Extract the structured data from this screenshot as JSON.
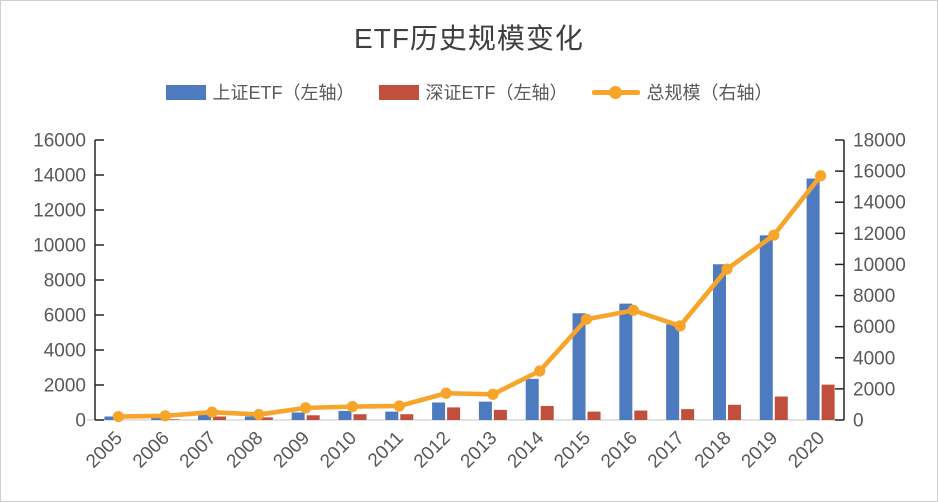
{
  "title": "ETF历史规模变化",
  "legend": [
    {
      "label": "上证ETF（左轴）",
      "type": "bar",
      "color": "#4E7BBF"
    },
    {
      "label": "深证ETF（左轴）",
      "type": "bar",
      "color": "#C04F3E"
    },
    {
      "label": "总规模（右轴）",
      "type": "line",
      "color": "#F7A42B"
    }
  ],
  "colors": {
    "shanghai_bar": "#4E7BBF",
    "shenzhen_bar": "#C04F3E",
    "total_line": "#F7A42B",
    "axis_line": "#262626",
    "baseline": "#D9D9D9",
    "axis_text": "#595959",
    "title_text": "#3F3F3F"
  },
  "chart_data": {
    "type": "bar+line",
    "title": "ETF历史规模变化",
    "categories": [
      "2005",
      "2006",
      "2007",
      "2008",
      "2009",
      "2010",
      "2011",
      "2012",
      "2013",
      "2014",
      "2015",
      "2016",
      "2017",
      "2018",
      "2019",
      "2020"
    ],
    "series": [
      {
        "name": "上证ETF（左轴）",
        "type": "bar",
        "axis": "left",
        "color": "#4E7BBF",
        "values": [
          200,
          230,
          300,
          200,
          430,
          520,
          480,
          1000,
          1050,
          2350,
          6100,
          6650,
          5470,
          8900,
          10550,
          13800
        ]
      },
      {
        "name": "深证ETF（左轴）",
        "type": "bar",
        "axis": "left",
        "color": "#C04F3E",
        "values": [
          0,
          40,
          200,
          150,
          270,
          330,
          330,
          720,
          580,
          800,
          480,
          540,
          620,
          870,
          1340,
          2020
        ]
      },
      {
        "name": "总规模（右轴）",
        "type": "line",
        "axis": "right",
        "color": "#F7A42B",
        "values": [
          220,
          270,
          500,
          350,
          780,
          860,
          900,
          1720,
          1650,
          3150,
          6480,
          7050,
          6050,
          9700,
          11880,
          15700
        ]
      }
    ],
    "left_axis": {
      "min": 0,
      "max": 16000,
      "step": 2000
    },
    "right_axis": {
      "min": 0,
      "max": 18000,
      "step": 2000
    },
    "legend_position": "top",
    "grid": false,
    "x_label_rotation": -45
  }
}
